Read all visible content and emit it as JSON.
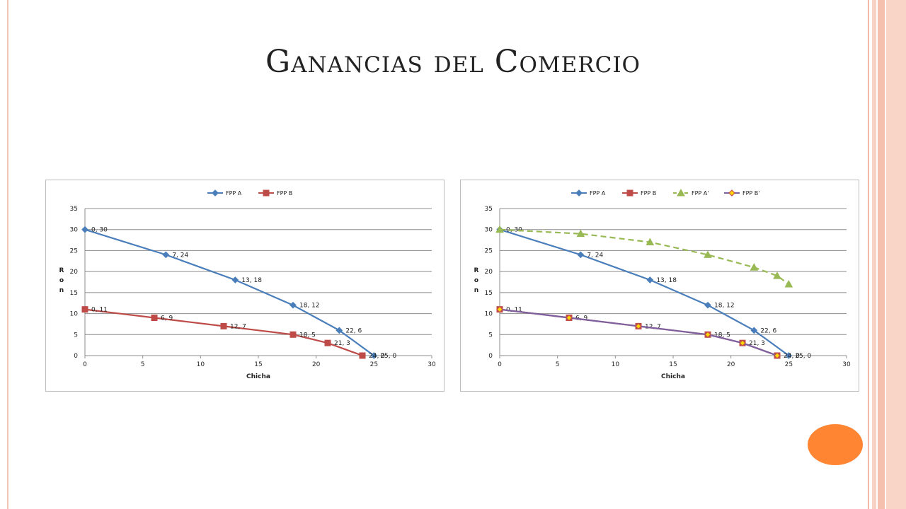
{
  "slide": {
    "title": "Ganancias del Comercio"
  },
  "chart_data": [
    {
      "type": "line",
      "xlabel": "Chicha",
      "ylabel": "Ron",
      "xlim": [
        0,
        30
      ],
      "ylim": [
        0,
        35
      ],
      "x_ticks": [
        0,
        5,
        10,
        15,
        20,
        25,
        30
      ],
      "y_ticks": [
        0,
        5,
        10,
        15,
        20,
        25,
        30,
        35
      ],
      "grid": "horizontal",
      "legend": "top",
      "series": [
        {
          "name": "FPP A",
          "color": "#4a7ebb",
          "marker": "diamond",
          "dash": false,
          "x": [
            0,
            7,
            13,
            18,
            22,
            25
          ],
          "y": [
            30,
            24,
            18,
            12,
            6,
            0
          ],
          "labels": [
            "0, 30",
            "7, 24",
            "13, 18",
            "18, 12",
            "22, 6",
            "25, 0"
          ]
        },
        {
          "name": "FPP B",
          "color": "#be4b48",
          "marker": "square",
          "dash": false,
          "x": [
            0,
            6,
            12,
            18,
            21,
            24
          ],
          "y": [
            11,
            9,
            7,
            5,
            3,
            0
          ],
          "labels": [
            "0, 11",
            "6, 9",
            "12, 7",
            "18, 5",
            "21, 3",
            "24, 0"
          ]
        }
      ]
    },
    {
      "type": "line",
      "xlabel": "Chicha",
      "ylabel": "Ron",
      "xlim": [
        0,
        30
      ],
      "ylim": [
        0,
        35
      ],
      "x_ticks": [
        0,
        5,
        10,
        15,
        20,
        25,
        30
      ],
      "y_ticks": [
        0,
        5,
        10,
        15,
        20,
        25,
        30,
        35
      ],
      "grid": "horizontal",
      "legend": "top",
      "series": [
        {
          "name": "FPP A",
          "color": "#4a7ebb",
          "marker": "diamond",
          "dash": false,
          "x": [
            0,
            7,
            13,
            18,
            22,
            25
          ],
          "y": [
            30,
            24,
            18,
            12,
            6,
            0
          ],
          "labels": [
            "0, 30",
            "7, 24",
            "13, 18",
            "18, 12",
            "22, 6",
            "25, 0"
          ]
        },
        {
          "name": "FPP B",
          "color": "#be4b48",
          "marker": "square",
          "dash": false,
          "x": [
            0,
            6,
            12,
            18,
            21,
            24
          ],
          "y": [
            11,
            9,
            7,
            5,
            3,
            0
          ],
          "labels": [
            "0, 11",
            "6, 9",
            "12, 7",
            "18, 5",
            "21, 3",
            "24, 0"
          ]
        },
        {
          "name": "FPP A'",
          "color": "#98b954",
          "marker": "triangle",
          "dash": true,
          "x": [
            0,
            7,
            13,
            18,
            22,
            24,
            25
          ],
          "y": [
            30,
            29,
            27,
            24,
            21,
            19,
            17
          ],
          "labels": []
        },
        {
          "name": "FPP B'",
          "color": "#7d60a0",
          "marker": "diamond",
          "marker_fill": "#ffd700",
          "marker_stroke": "#c0504d",
          "dash": false,
          "x": [
            0,
            6,
            12,
            18,
            21,
            24
          ],
          "y": [
            11,
            9,
            7,
            5,
            3,
            0
          ],
          "labels": []
        }
      ]
    }
  ]
}
